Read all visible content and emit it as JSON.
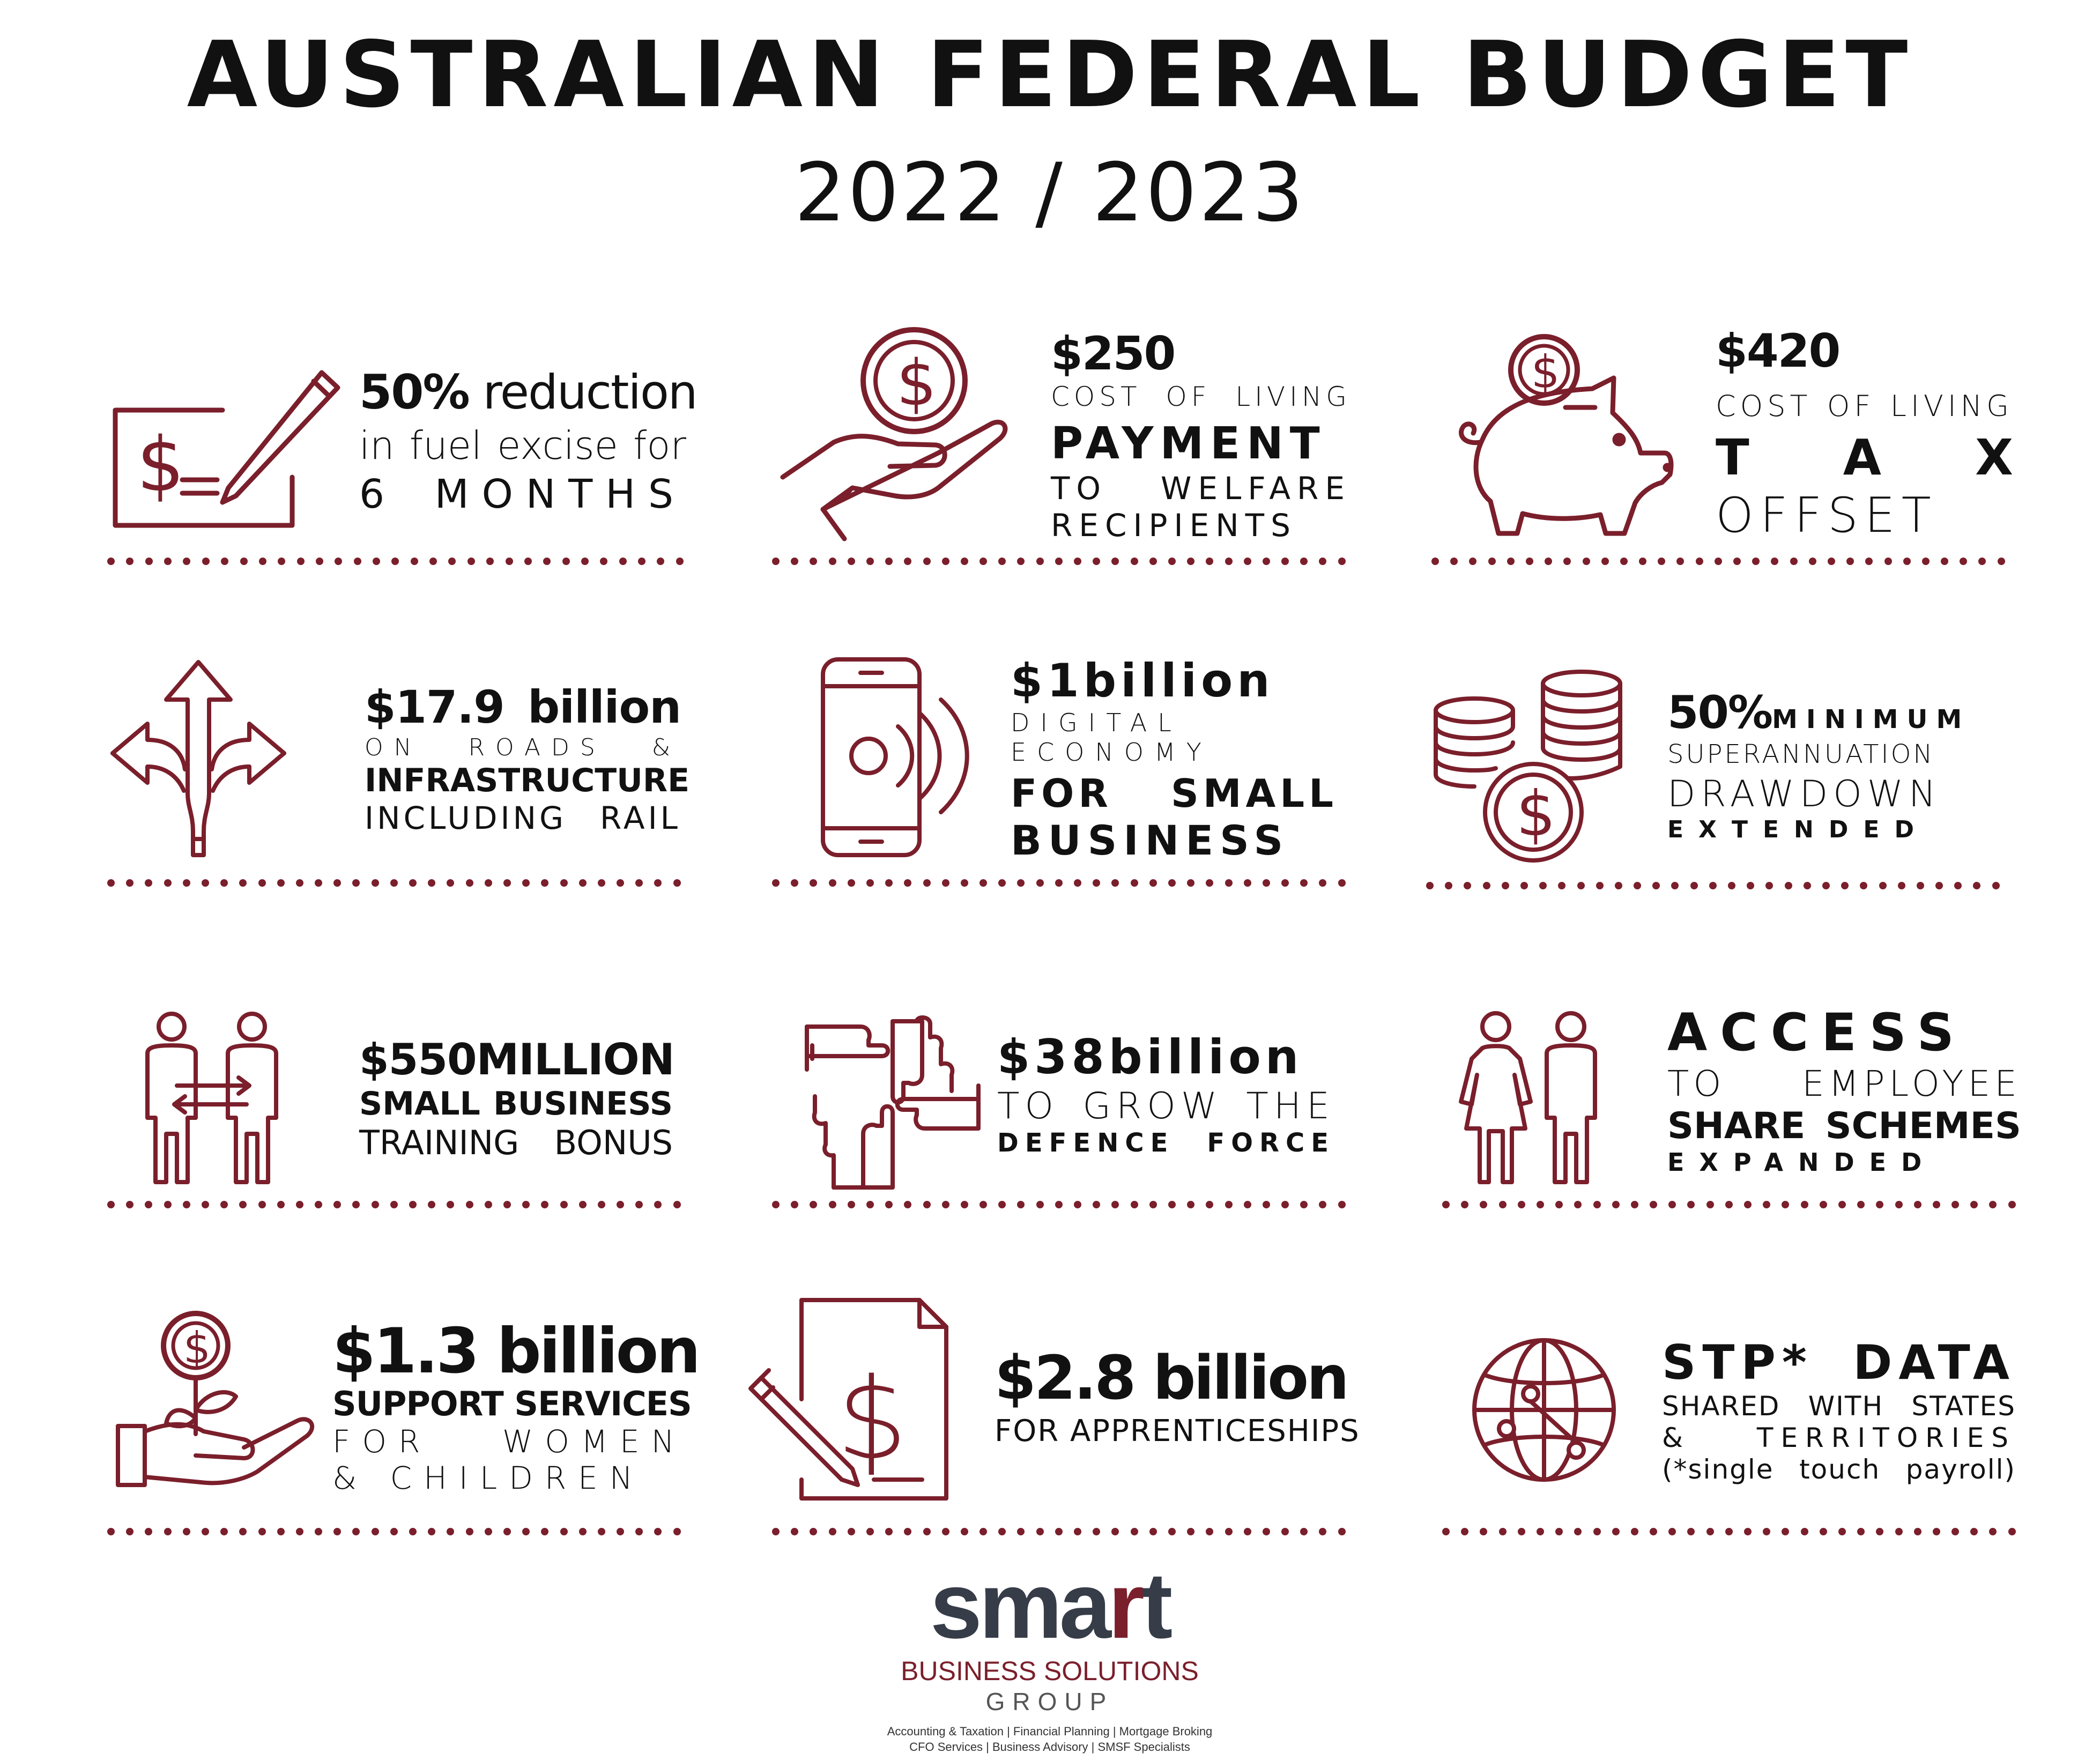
{
  "header": {
    "title": "AUSTRALIAN FEDERAL BUDGET",
    "subtitle": "2022 / 2023"
  },
  "colors": {
    "accent": "#7a1f2b",
    "text": "#111111",
    "logo_gray": "#363c48"
  },
  "cards": {
    "fuel": {
      "icon": "cheque-pen-icon",
      "headline_a": "50%",
      "headline_b": " reduction",
      "line2": "in fuel excise for",
      "line3": "6 MONTHS"
    },
    "payment": {
      "icon": "hand-coin-icon",
      "line1": "$250",
      "line2": "COST OF LIVING",
      "line3": "PAYMENT",
      "line4": "TO WELFARE",
      "line5": "RECIPIENTS"
    },
    "tax": {
      "icon": "piggy-bank-icon",
      "line1": "$420",
      "line2": "COST OF LIVING",
      "line3": "T A X",
      "line4": "OFFSET"
    },
    "roads": {
      "icon": "road-arrows-icon",
      "line1": "$17.9 billion",
      "line2": "ON ROADS &",
      "line3": "INFRASTRUCTURE",
      "line4": "INCLUDING RAIL"
    },
    "digital": {
      "icon": "smartphone-signal-icon",
      "line1": "$1billion",
      "line2": "DIGITAL",
      "line3": "ECONOMY",
      "line4": "FOR SMALL",
      "line5": "BUSINESS"
    },
    "super": {
      "icon": "coin-stacks-icon",
      "line1a": "50%",
      "line1b": "MINIMUM",
      "line2": "SUPERANNUATION",
      "line3": "DRAWDOWN",
      "line4": "EXTENDED"
    },
    "training": {
      "icon": "people-exchange-icon",
      "line1": "$550MILLION",
      "line2": "SMALL BUSINESS",
      "line3": "TRAINING BONUS"
    },
    "defence": {
      "icon": "hands-together-icon",
      "line1": "$38billion",
      "line2": "TO GROW THE",
      "line3": "DEFENCE FORCE"
    },
    "shares": {
      "icon": "woman-man-icon",
      "line1": "ACCESS",
      "line2": "TO EMPLOYEE",
      "line3": "SHARE SCHEMES",
      "line4": "EXPANDED"
    },
    "women": {
      "icon": "hand-plant-coin-icon",
      "line1": "$1.3 billion",
      "line2": "SUPPORT SERVICES",
      "line3": "FOR WOMEN",
      "line4": "& CHILDREN"
    },
    "apprentice": {
      "icon": "document-pencil-dollar-icon",
      "line1": "$2.8 billion",
      "line2": "FOR APPRENTICESHIPS"
    },
    "stp": {
      "icon": "globe-network-icon",
      "line1": "STP* DATA",
      "line2": "SHARED WITH STATES",
      "line3": "& TERRITORIES",
      "line4": "(*single touch payroll)"
    }
  },
  "logo": {
    "word_a": "sma",
    "word_b": "r",
    "word_c": "t",
    "line2": "BUSINESS SOLUTIONS",
    "line3": "GROUP",
    "tag1": "Accounting & Taxation  |  Financial Planning  |  Mortgage Broking",
    "tag2": "CFO Services  |  Business Advisory  |  SMSF Specialists"
  }
}
